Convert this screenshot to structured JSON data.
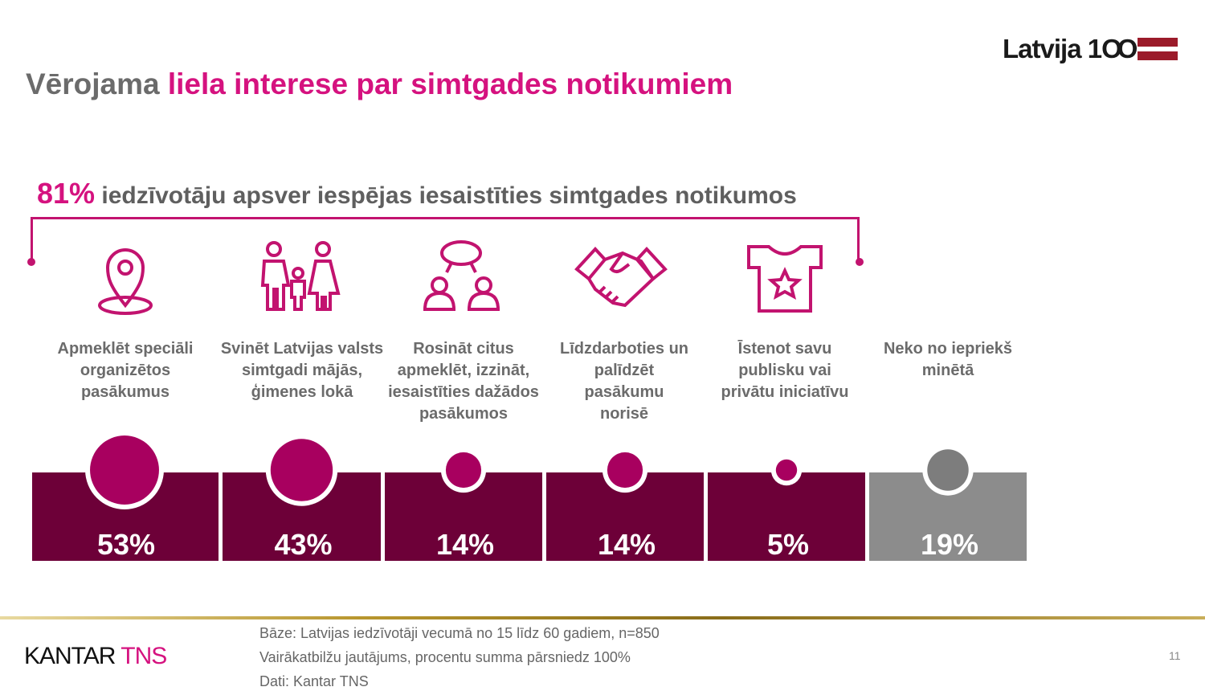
{
  "header": {
    "title_plain": "Vērojama",
    "title_highlight": "liela interese par simtgades notikumiem",
    "logo_text": "Latvija 1OO"
  },
  "subtitle": {
    "percent": "81%",
    "text": "iedzīvotāju apsver iespējas iesaistīties simtgades notikumos"
  },
  "colors": {
    "accent": "#d5127f",
    "bar": "#6d0038",
    "circle": "#a8005f",
    "none_bar": "#8c8c8c",
    "none_circle": "#7d7d7d"
  },
  "chart_data": {
    "type": "bubble-bar",
    "categories": [
      {
        "label": "Apmeklēt speciāli organizētos pasākumus",
        "icon": "location-pin-icon",
        "value": 53,
        "value_label": "53%"
      },
      {
        "label": "Svinēt Latvijas valsts simtgadi mājās, ģimenes lokā",
        "icon": "family-icon",
        "value": 43,
        "value_label": "43%"
      },
      {
        "label": "Rosināt citus apmeklēt, izzināt, iesaistīties dažādos pasākumos",
        "icon": "people-talking-icon",
        "value": 14,
        "value_label": "14%"
      },
      {
        "label": "Līdzdarboties un palīdzēt pasākumu norisē",
        "icon": "handshake-icon",
        "value": 14,
        "value_label": "14%"
      },
      {
        "label": "Īstenot savu publisku vai privātu iniciatīvu",
        "icon": "tshirt-star-icon",
        "value": 5,
        "value_label": "5%"
      },
      {
        "label": "Neko no iepriekš minētā",
        "icon": "",
        "value": 19,
        "value_label": "19%"
      }
    ]
  },
  "footer": {
    "brand_a": "KANTAR",
    "brand_b": "TNS",
    "notes": [
      "Bāze: Latvijas iedzīvotāji vecumā no 15 līdz 60 gadiem, n=850",
      "Vairākatbilžu jautājums, procentu summa pārsniedz 100%",
      "Dati: Kantar TNS"
    ],
    "page_number": "11"
  }
}
